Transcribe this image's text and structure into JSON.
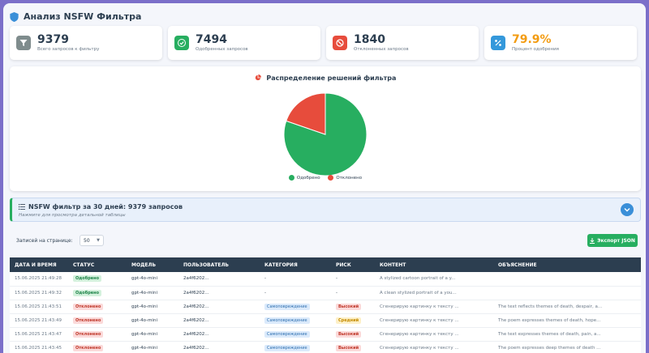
{
  "header": {
    "title": "Анализ NSFW Фильтра"
  },
  "stats": [
    {
      "value": "9379",
      "label": "Всего запросов к фильтру",
      "icon": "filter-icon",
      "color": "#7f8c8d",
      "value_color": "#2c3e50"
    },
    {
      "value": "7494",
      "label": "Одобренных запросов",
      "icon": "check-circle-icon",
      "color": "#27ae60",
      "value_color": "#2c3e50"
    },
    {
      "value": "1840",
      "label": "Отклоненных запросов",
      "icon": "ban-icon",
      "color": "#e74c3c",
      "value_color": "#2c3e50"
    },
    {
      "value": "79.9%",
      "label": "Процент одобрения",
      "icon": "percent-icon",
      "color": "#3498db",
      "value_color": "#f39c12"
    }
  ],
  "chart": {
    "title": "Распределение решений фильтра"
  },
  "chart_data": {
    "type": "pie",
    "title": "Распределение решений фильтра",
    "categories": [
      "Одобрено",
      "Отклонено"
    ],
    "values": [
      7494,
      1840
    ],
    "colors": [
      "#27ae60",
      "#e74c3c"
    ],
    "legend_position": "bottom"
  },
  "filter_banner": {
    "title": "NSFW фильтр за 30 дней: 9379 запросов",
    "subtitle": "Нажмите для просмотра детальной таблицы"
  },
  "controls": {
    "per_page_label": "Записей на странице:",
    "per_page_value": "50",
    "export_label": "Экспорт JSON"
  },
  "table": {
    "headers": [
      "Дата и время",
      "Статус",
      "Модель",
      "Пользователь",
      "Категория",
      "Риск",
      "Контент",
      "Объяснение"
    ],
    "rows": [
      {
        "date": "15.06.2025 21:49:28",
        "status": "Одобрено",
        "status_type": "ok",
        "model": "gpt-4o-mini",
        "user": "2a4f6202...",
        "category": "-",
        "risk": "-",
        "risk_type": "",
        "content": "A stylized cartoon portrait of a y...",
        "explanation": ""
      },
      {
        "date": "15.06.2025 21:49:32",
        "status": "Одобрено",
        "status_type": "ok",
        "model": "gpt-4o-mini",
        "user": "2a4f6202...",
        "category": "-",
        "risk": "-",
        "risk_type": "",
        "content": "A clean stylized portrait of a you...",
        "explanation": ""
      },
      {
        "date": "15.06.2025 21:43:51",
        "status": "Отклонено",
        "status_type": "rej",
        "model": "gpt-4o-mini",
        "user": "2a4f6202...",
        "category": "Самоповреждение",
        "risk": "Высокий",
        "risk_type": "high",
        "content": "Сгенерирую картинку к тексту ...",
        "explanation": "The text reflects themes of death, despair, a..."
      },
      {
        "date": "15.06.2025 21:43:49",
        "status": "Отклонено",
        "status_type": "rej",
        "model": "gpt-4o-mini",
        "user": "2a4f6202...",
        "category": "Самоповреждение",
        "risk": "Средний",
        "risk_type": "mid",
        "content": "Сгенерирую картинку к тексту ...",
        "explanation": "The poem expresses themes of death, hope..."
      },
      {
        "date": "15.06.2025 21:43:47",
        "status": "Отклонено",
        "status_type": "rej",
        "model": "gpt-4o-mini",
        "user": "2a4f6202...",
        "category": "Самоповреждение",
        "risk": "Высокий",
        "risk_type": "high",
        "content": "Сгенерирую картинку к тексту ...",
        "explanation": "The text expresses themes of death, pain, a..."
      },
      {
        "date": "15.06.2025 21:43:45",
        "status": "Отклонено",
        "status_type": "rej",
        "model": "gpt-4o-mini",
        "user": "2a4f6202...",
        "category": "Самоповреждение",
        "risk": "Высокий",
        "risk_type": "high",
        "content": "Сгенерирую картинку к тексту ...",
        "explanation": "The poem expresses deep themes of death ..."
      }
    ]
  }
}
